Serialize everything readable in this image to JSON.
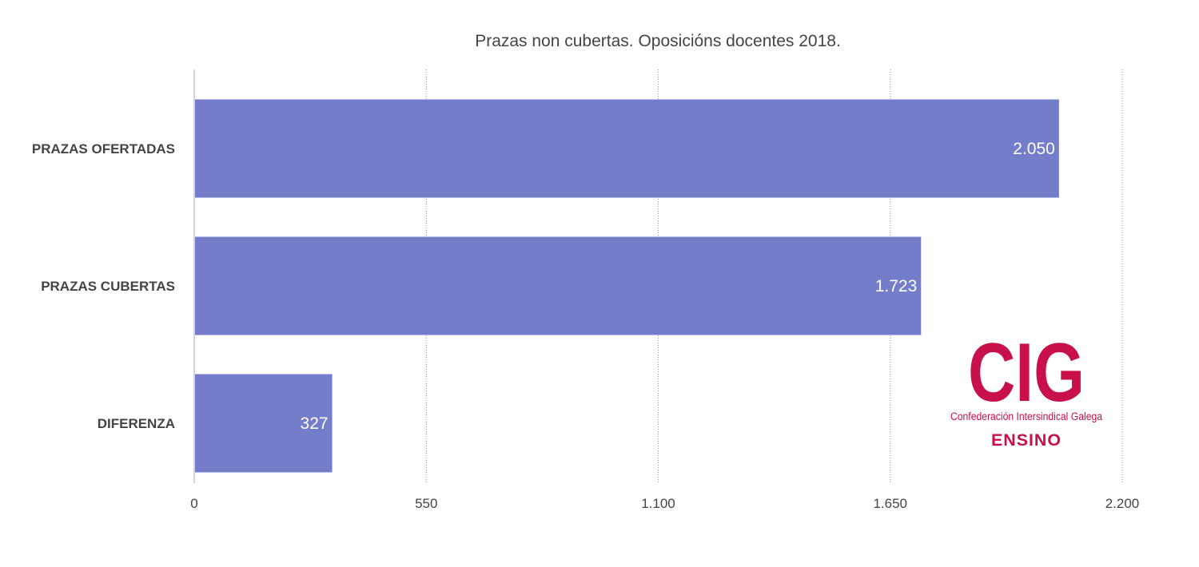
{
  "colors": {
    "bar": "#737dca",
    "grid": "#999999",
    "axis": "#aaaaaa",
    "text": "#444444",
    "data_label": "#ffffff",
    "logo": "#c8104b"
  },
  "chart_data": {
    "type": "bar",
    "orientation": "horizontal",
    "title": "Prazas non cubertas. Oposicións docentes 2018.",
    "categories": [
      "PRAZAS OFERTADAS",
      "PRAZAS CUBERTAS",
      "DIFERENZA"
    ],
    "values": [
      2050,
      1723,
      327
    ],
    "data_labels": [
      "2.050",
      "1.723",
      "327"
    ],
    "xlim": [
      0,
      2200
    ],
    "xticks": [
      0,
      550,
      1100,
      1650,
      2200
    ],
    "xtick_labels": [
      "0",
      "550",
      "1.100",
      "1.650",
      "2.200"
    ],
    "xlabel": "",
    "ylabel": "",
    "grid": "vertical dotted"
  },
  "logo": {
    "mark": "CIG",
    "subtitle": "Confederación Intersindical Galega",
    "name": "ENSINO"
  }
}
